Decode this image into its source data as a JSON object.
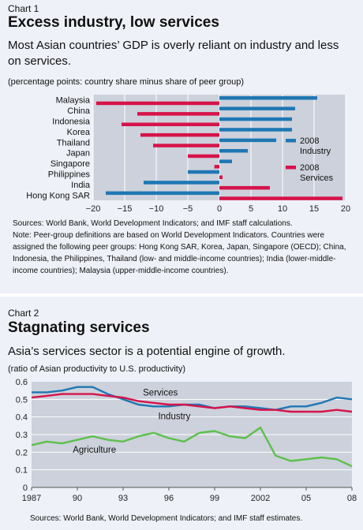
{
  "chart1": {
    "label": "Chart 1",
    "title": "Excess industry, low services",
    "subtitle": "Most Asian countries’ GDP is overly reliant on industry and less on services.",
    "units": "(percentage points: country share minus share of peer group)",
    "source": "Sources: World Bank, World Development Indicators; and IMF staff calculations.",
    "note": "Note: Peer-group definitions are based on World Development Indicators. Countries were assigned the following peer groups: Hong Kong SAR, Korea, Japan, Singapore (OECD); China, Indonesia, the Philippines, Thailand (low- and middle-income countries); India (lower-middle-income countries); Malaysia (upper-middle-income countries)."
  },
  "chart2": {
    "label": "Chart 2",
    "title": "Stagnating services",
    "subtitle": "Asia’s services sector is a potential engine of growth.",
    "units": "(ratio of Asian productivity to U.S. productivity)",
    "source": "Sources: World Bank, World Development Indicators; and IMF staff estimates."
  },
  "chart_data": [
    {
      "type": "bar",
      "orientation": "horizontal",
      "categories": [
        "Malaysia",
        "China",
        "Indonesia",
        "Korea",
        "Thailand",
        "Japan",
        "Singapore",
        "Philippines",
        "India",
        "Hong Kong SAR"
      ],
      "series": [
        {
          "name": "2008 Industry",
          "color": "#1f77b4",
          "values": [
            15.5,
            12,
            11.5,
            11.5,
            9,
            4.5,
            2,
            -5,
            -12,
            -18
          ]
        },
        {
          "name": "2008 Services",
          "color": "#d6134a",
          "values": [
            -19.5,
            -13,
            -15.5,
            -12.5,
            -10.5,
            -5,
            -0.8,
            0.5,
            8,
            19.5
          ]
        }
      ],
      "legend_labels": [
        [
          "2008",
          "Industry"
        ],
        [
          "2008",
          "Services"
        ]
      ],
      "xlim": [
        -20,
        20
      ],
      "xticks": [
        "−20",
        "−15",
        "−10",
        "−5",
        "0",
        "5",
        "10",
        "15",
        "20"
      ],
      "grid": "vertical",
      "legend": "right"
    },
    {
      "type": "line",
      "x": [
        1987,
        1988,
        1989,
        1990,
        1991,
        1992,
        1993,
        1994,
        1995,
        1996,
        1997,
        1998,
        1999,
        2000,
        2001,
        2002,
        2003,
        2004,
        2005,
        2006,
        2007,
        2008
      ],
      "xticks": [
        "1987",
        "90",
        "93",
        "96",
        "99",
        "2002",
        "05",
        "08"
      ],
      "series": [
        {
          "name": "Services",
          "color": "#1f77b4",
          "values": [
            0.54,
            0.54,
            0.55,
            0.57,
            0.57,
            0.53,
            0.5,
            0.47,
            0.46,
            0.46,
            0.47,
            0.47,
            0.45,
            0.46,
            0.46,
            0.45,
            0.44,
            0.46,
            0.46,
            0.48,
            0.51,
            0.5
          ]
        },
        {
          "name": "Industry",
          "color": "#d6134a",
          "values": [
            0.51,
            0.52,
            0.53,
            0.53,
            0.53,
            0.52,
            0.51,
            0.49,
            0.48,
            0.47,
            0.47,
            0.46,
            0.45,
            0.46,
            0.45,
            0.44,
            0.44,
            0.43,
            0.43,
            0.43,
            0.44,
            0.43
          ]
        },
        {
          "name": "Agriculture",
          "color": "#5cc04c",
          "values": [
            0.24,
            0.26,
            0.25,
            0.27,
            0.29,
            0.27,
            0.26,
            0.29,
            0.31,
            0.28,
            0.26,
            0.31,
            0.32,
            0.29,
            0.28,
            0.34,
            0.18,
            0.15,
            0.16,
            0.17,
            0.16,
            0.12
          ]
        }
      ],
      "ylim": [
        0,
        0.6
      ],
      "yticks": [
        "0",
        "0.1",
        "0.2",
        "0.3",
        "0.4",
        "0.5",
        "0.6"
      ],
      "grid": "horizontal"
    }
  ]
}
